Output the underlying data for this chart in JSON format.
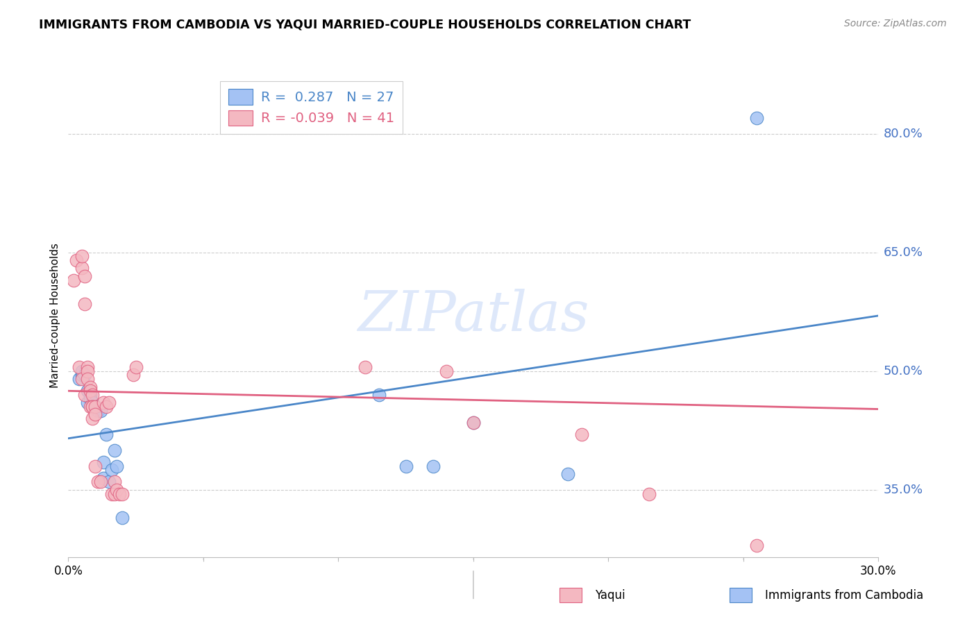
{
  "title": "IMMIGRANTS FROM CAMBODIA VS YAQUI MARRIED-COUPLE HOUSEHOLDS CORRELATION CHART",
  "source": "Source: ZipAtlas.com",
  "ylabel": "Married-couple Households",
  "legend_label1": "Immigrants from Cambodia",
  "legend_label2": "Yaqui",
  "R1": 0.287,
  "N1": 27,
  "R2": -0.039,
  "N2": 41,
  "xmin": 0.0,
  "xmax": 0.3,
  "ymin": 0.265,
  "ymax": 0.875,
  "yticks": [
    0.35,
    0.5,
    0.65,
    0.8
  ],
  "ytick_labels": [
    "35.0%",
    "50.0%",
    "65.0%",
    "80.0%"
  ],
  "xticks": [
    0.0,
    0.05,
    0.1,
    0.15,
    0.2,
    0.25,
    0.3
  ],
  "xtick_labels": [
    "0.0%",
    "",
    "",
    "",
    "",
    "",
    "30.0%"
  ],
  "color_blue": "#a4c2f4",
  "color_pink": "#f4b8c1",
  "line_color_blue": "#4a86c8",
  "line_color_pink": "#e06080",
  "watermark": "ZIPatlas",
  "blue_points_x": [
    0.004,
    0.005,
    0.005,
    0.006,
    0.007,
    0.007,
    0.008,
    0.008,
    0.009,
    0.009,
    0.01,
    0.011,
    0.012,
    0.013,
    0.013,
    0.014,
    0.015,
    0.016,
    0.017,
    0.018,
    0.02,
    0.115,
    0.125,
    0.135,
    0.15,
    0.185,
    0.255
  ],
  "blue_points_y": [
    0.49,
    0.495,
    0.5,
    0.495,
    0.475,
    0.46,
    0.47,
    0.465,
    0.46,
    0.455,
    0.455,
    0.45,
    0.45,
    0.385,
    0.365,
    0.42,
    0.36,
    0.375,
    0.4,
    0.38,
    0.315,
    0.47,
    0.38,
    0.38,
    0.435,
    0.37,
    0.82
  ],
  "pink_points_x": [
    0.002,
    0.003,
    0.004,
    0.005,
    0.005,
    0.005,
    0.006,
    0.006,
    0.006,
    0.007,
    0.007,
    0.007,
    0.008,
    0.008,
    0.008,
    0.009,
    0.009,
    0.009,
    0.009,
    0.01,
    0.01,
    0.01,
    0.011,
    0.012,
    0.013,
    0.014,
    0.015,
    0.016,
    0.017,
    0.017,
    0.018,
    0.019,
    0.02,
    0.024,
    0.025,
    0.11,
    0.14,
    0.15,
    0.19,
    0.215,
    0.255
  ],
  "pink_points_y": [
    0.615,
    0.64,
    0.505,
    0.49,
    0.63,
    0.645,
    0.62,
    0.585,
    0.47,
    0.505,
    0.5,
    0.49,
    0.48,
    0.475,
    0.455,
    0.47,
    0.455,
    0.455,
    0.44,
    0.455,
    0.445,
    0.38,
    0.36,
    0.36,
    0.46,
    0.455,
    0.46,
    0.345,
    0.345,
    0.36,
    0.35,
    0.345,
    0.345,
    0.495,
    0.505,
    0.505,
    0.5,
    0.435,
    0.42,
    0.345,
    0.28
  ],
  "blue_line_x": [
    0.0,
    0.3
  ],
  "blue_line_y": [
    0.415,
    0.57
  ],
  "pink_line_x": [
    0.0,
    0.3
  ],
  "pink_line_y": [
    0.475,
    0.452
  ]
}
